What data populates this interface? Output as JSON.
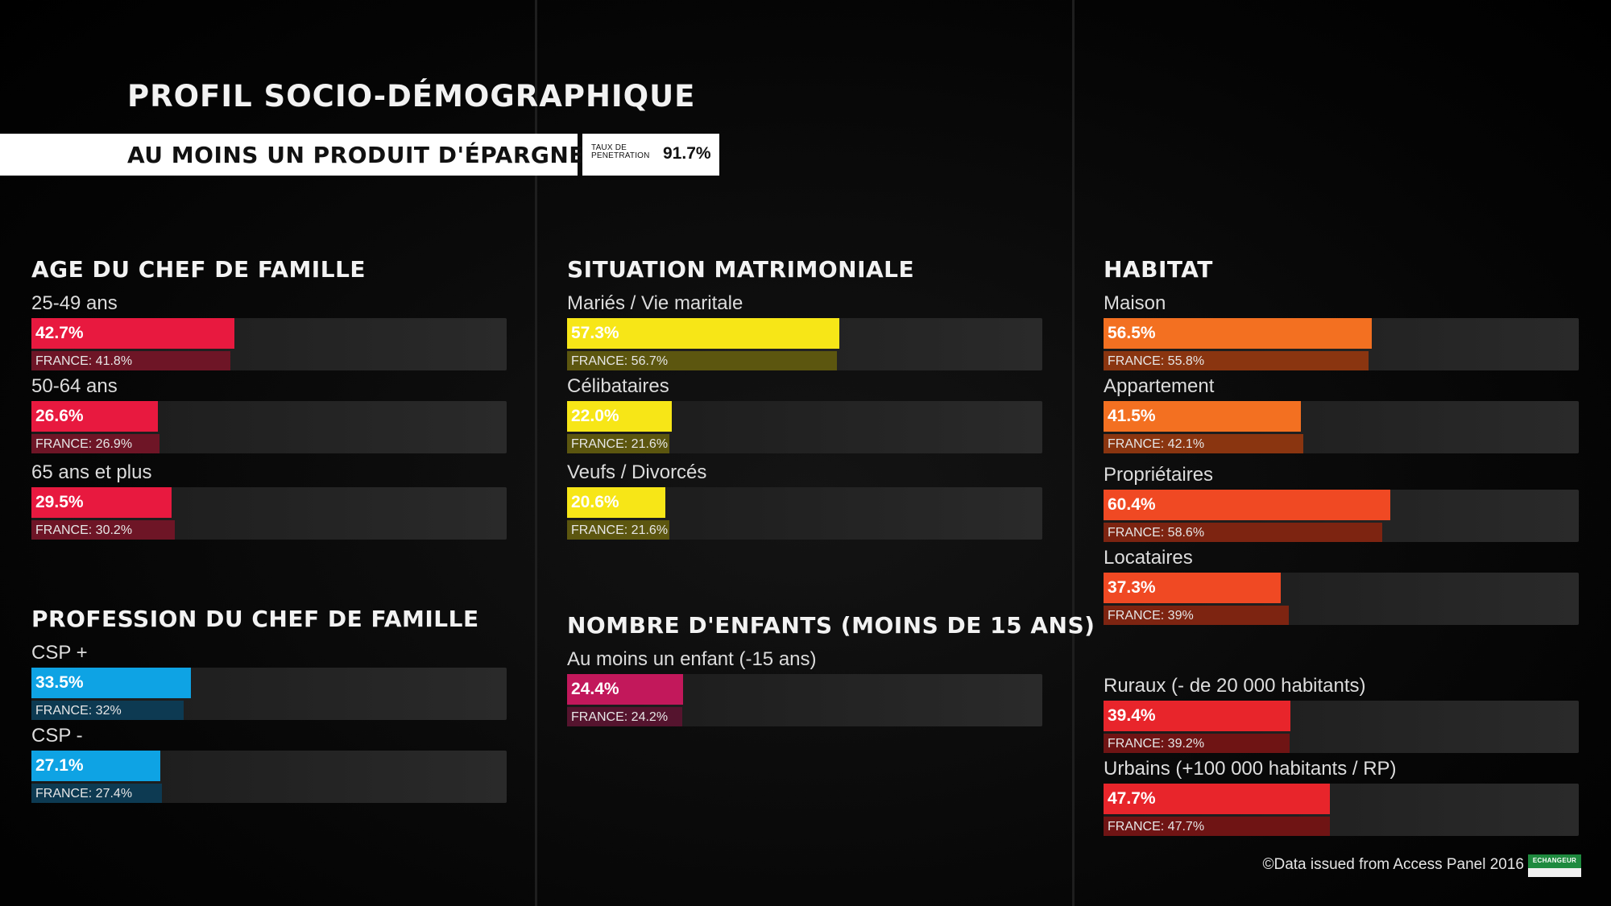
{
  "header": {
    "title": "PROFIL SOCIO-DÉMOGRAPHIQUE",
    "subtitle": "AU MOINS UN PRODUIT D'ÉPARGNE",
    "penetration_label": "TAUX DE PENETRATION",
    "penetration_value": "91.7%"
  },
  "footer": {
    "source": "©Data issued from Access Panel 2016",
    "logo_text": "ECHANGEUR"
  },
  "chart_data": [
    {
      "type": "bar",
      "title": "AGE DU CHEF DE FAMILLE",
      "color": "#e8193f",
      "france_color": "#6e1526",
      "x_max": 100,
      "rows": [
        {
          "label": "25-49 ans",
          "value": 42.7,
          "value_label": "42.7%",
          "france": 41.8,
          "france_label": "FRANCE: 41.8%"
        },
        {
          "label": "50-64 ans",
          "value": 26.6,
          "value_label": "26.6%",
          "france": 26.9,
          "france_label": "FRANCE: 26.9%"
        },
        {
          "label": "65 ans et plus",
          "value": 29.5,
          "value_label": "29.5%",
          "france": 30.2,
          "france_label": "FRANCE: 30.2%"
        }
      ]
    },
    {
      "type": "bar",
      "title": "PROFESSION DU CHEF DE FAMILLE",
      "color": "#0ea3e4",
      "france_color": "#0d3a52",
      "x_max": 100,
      "rows": [
        {
          "label": "CSP +",
          "value": 33.5,
          "value_label": "33.5%",
          "france": 32,
          "france_label": "FRANCE: 32%"
        },
        {
          "label": "CSP -",
          "value": 27.1,
          "value_label": "27.1%",
          "france": 27.4,
          "france_label": "FRANCE: 27.4%"
        }
      ]
    },
    {
      "type": "bar",
      "title": "SITUATION MATRIMONIALE",
      "color": "#f7e617",
      "france_color": "#5c560f",
      "x_max": 100,
      "rows": [
        {
          "label": "Mariés / Vie maritale",
          "value": 57.3,
          "value_label": "57.3%",
          "france": 56.7,
          "france_label": "FRANCE: 56.7%"
        },
        {
          "label": "Célibataires",
          "value": 22.0,
          "value_label": "22.0%",
          "france": 21.6,
          "france_label": "FRANCE: 21.6%"
        },
        {
          "label": "Veufs / Divorcés",
          "value": 20.6,
          "value_label": "20.6%",
          "france": 21.6,
          "france_label": "FRANCE: 21.6%"
        }
      ]
    },
    {
      "type": "bar",
      "title": "NOMBRE D'ENFANTS (MOINS DE 15 ANS)",
      "color": "#c2185b",
      "france_color": "#55142e",
      "x_max": 100,
      "rows": [
        {
          "label": "Au moins un enfant (-15 ans)",
          "value": 24.4,
          "value_label": "24.4%",
          "france": 24.2,
          "france_label": "FRANCE: 24.2%"
        }
      ]
    },
    {
      "type": "bar",
      "title": "HABITAT",
      "x_max": 100,
      "rows": [
        {
          "label": "Maison",
          "value": 56.5,
          "value_label": "56.5%",
          "france": 55.8,
          "france_label": "FRANCE: 55.8%",
          "color": "#f37021",
          "france_color": "#8a3510"
        },
        {
          "label": "Appartement",
          "value": 41.5,
          "value_label": "41.5%",
          "france": 42.1,
          "france_label": "FRANCE: 42.1%",
          "color": "#f37021",
          "france_color": "#8a3510"
        },
        {
          "label": "Propriétaires",
          "value": 60.4,
          "value_label": "60.4%",
          "france": 58.6,
          "france_label": "FRANCE: 58.6%",
          "color": "#f04923",
          "france_color": "#7d2411"
        },
        {
          "label": "Locataires",
          "value": 37.3,
          "value_label": "37.3%",
          "france": 39,
          "france_label": "FRANCE: 39%",
          "color": "#f04923",
          "france_color": "#7d2411"
        },
        {
          "label": "Ruraux (- de 20 000 habitants)",
          "value": 39.4,
          "value_label": "39.4%",
          "france": 39.2,
          "france_label": "FRANCE: 39.2%",
          "color": "#e8252b",
          "france_color": "#6f1414"
        },
        {
          "label": "Urbains (+100 000 habitants / RP)",
          "value": 47.7,
          "value_label": "47.7%",
          "france": 47.7,
          "france_label": "FRANCE: 47.7%",
          "color": "#e8252b",
          "france_color": "#6f1414"
        }
      ]
    }
  ]
}
